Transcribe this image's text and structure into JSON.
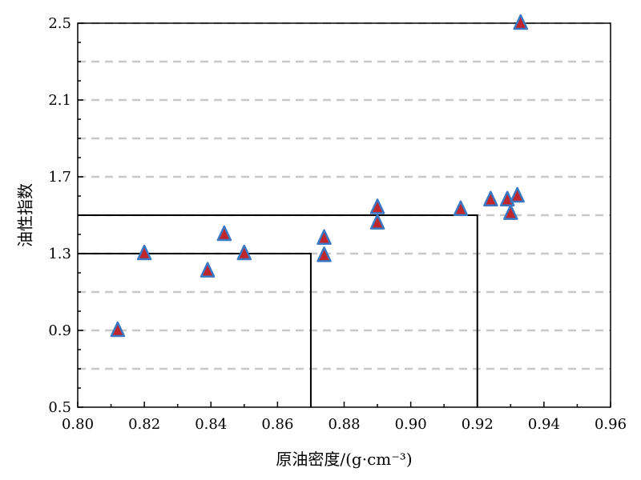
{
  "chart_data": {
    "type": "scatter",
    "xlabel": "原油密度/(g·cm⁻³)",
    "ylabel": "油性指数",
    "xlim": [
      0.8,
      0.96
    ],
    "ylim": [
      0.5,
      2.5
    ],
    "x_ticks": [
      "0.80",
      "0.82",
      "0.84",
      "0.86",
      "0.88",
      "0.90",
      "0.92",
      "0.94",
      "0.96"
    ],
    "y_ticks": [
      "0.5",
      "0.9",
      "1.3",
      "1.7",
      "2.1",
      "2.5"
    ],
    "grid": "horizontal-dashed",
    "grid_y": [
      0.7,
      0.9,
      1.1,
      1.3,
      1.5,
      1.7,
      1.9,
      2.1,
      2.3,
      2.5
    ],
    "marker": "triangle",
    "marker_fill": "#c0272d",
    "marker_edge": "#3a78c3",
    "points": [
      {
        "x": 0.812,
        "y": 0.9
      },
      {
        "x": 0.82,
        "y": 1.3
      },
      {
        "x": 0.839,
        "y": 1.21
      },
      {
        "x": 0.844,
        "y": 1.4
      },
      {
        "x": 0.85,
        "y": 1.3
      },
      {
        "x": 0.874,
        "y": 1.29
      },
      {
        "x": 0.874,
        "y": 1.38
      },
      {
        "x": 0.89,
        "y": 1.46
      },
      {
        "x": 0.89,
        "y": 1.54
      },
      {
        "x": 0.915,
        "y": 1.53
      },
      {
        "x": 0.924,
        "y": 1.58
      },
      {
        "x": 0.929,
        "y": 1.58
      },
      {
        "x": 0.93,
        "y": 1.51
      },
      {
        "x": 0.932,
        "y": 1.6
      },
      {
        "x": 0.933,
        "y": 2.5
      }
    ],
    "boundary_lines": [
      {
        "x": 0.87,
        "y": 1.3
      },
      {
        "x": 0.92,
        "y": 1.5
      }
    ]
  }
}
